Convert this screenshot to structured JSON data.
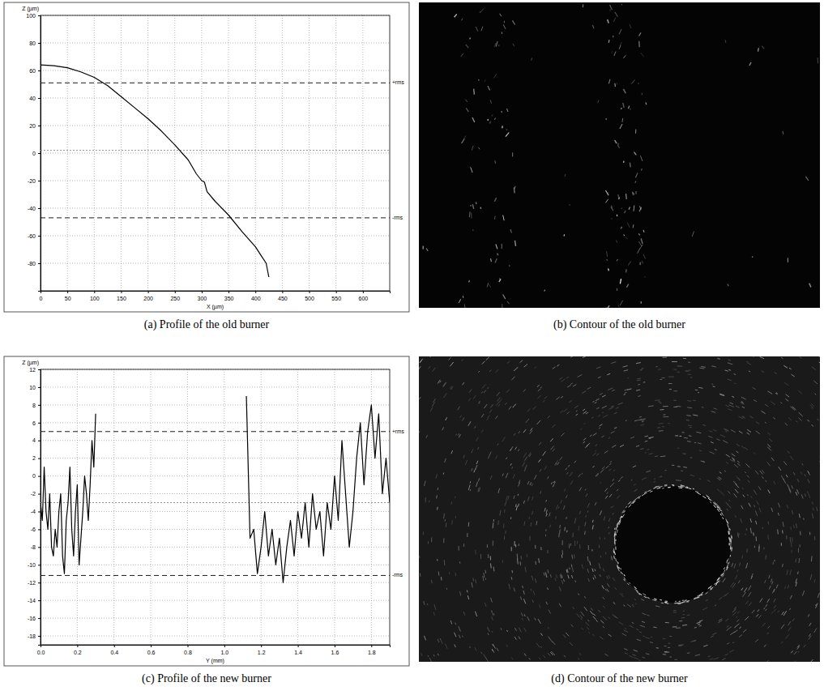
{
  "chart_data": [
    {
      "type": "line",
      "caption": "(a) Profile of the old burner",
      "x_label": "X (µm)",
      "y_label": "Z (µm)",
      "x": [
        0,
        25,
        50,
        75,
        100,
        125,
        150,
        175,
        200,
        225,
        250,
        275,
        290,
        300,
        305,
        310,
        325,
        350,
        375,
        400,
        410,
        420,
        425
      ],
      "series": [
        {
          "color": "#000000",
          "values": [
            64,
            63.5,
            62,
            59,
            55,
            49,
            41,
            33,
            25,
            16,
            6,
            -5,
            -15,
            -20,
            -21,
            -28,
            -35,
            -45,
            -57,
            -68,
            -74,
            -80,
            -90
          ]
        }
      ],
      "xlim": [
        0,
        650
      ],
      "xticks": [
        0,
        50,
        100,
        150,
        200,
        250,
        300,
        350,
        400,
        450,
        500,
        550,
        600
      ],
      "ylim": [
        -100,
        100
      ],
      "yticks": [
        100,
        80,
        60,
        40,
        20,
        0,
        -20,
        -40,
        -60,
        -80
      ],
      "grid": true,
      "annotations": [
        {
          "y": 51,
          "text": "+rms",
          "line_style": "dashed"
        },
        {
          "y": 2,
          "line_style": "dotted"
        },
        {
          "y": -47,
          "text": "-rms",
          "line_style": "dashed"
        }
      ]
    },
    {
      "type": "line",
      "caption": "(c) Profile of the new burner",
      "x_label": "Y (mm)",
      "y_label": "Z (µm)",
      "x": [
        0.0,
        0.01,
        0.02,
        0.03,
        0.04,
        0.05,
        0.06,
        0.07,
        0.08,
        0.09,
        0.1,
        0.11,
        0.12,
        0.13,
        0.14,
        0.15,
        0.16,
        0.17,
        0.18,
        0.19,
        0.2,
        0.21,
        0.22,
        0.23,
        0.24,
        0.25,
        0.26,
        0.27,
        0.28,
        0.29,
        0.3,
        0.7,
        1.12,
        1.14,
        1.16,
        1.18,
        1.2,
        1.22,
        1.24,
        1.26,
        1.28,
        1.3,
        1.32,
        1.34,
        1.36,
        1.38,
        1.4,
        1.42,
        1.44,
        1.46,
        1.48,
        1.5,
        1.52,
        1.54,
        1.56,
        1.58,
        1.6,
        1.62,
        1.64,
        1.66,
        1.68,
        1.7,
        1.72,
        1.74,
        1.76,
        1.78,
        1.8,
        1.82,
        1.84,
        1.86,
        1.88,
        1.9
      ],
      "series": [
        {
          "color": "#000000",
          "values": [
            -3,
            -5,
            1,
            -4,
            -6,
            -2,
            -8,
            -9,
            -6,
            -8,
            -4,
            -2,
            -9,
            -11,
            -5,
            -3,
            1,
            -6,
            -9,
            -4,
            -1,
            -10,
            -7,
            -4,
            0,
            -2,
            -5,
            -1,
            4,
            1,
            7,
            null,
            9,
            -7,
            -6,
            -11,
            -8,
            -4,
            -9,
            -6,
            -10,
            -7,
            -12,
            -8,
            -5,
            -9,
            -4,
            -7,
            -3,
            -8,
            -2,
            -6,
            -4,
            -9,
            -3,
            -6,
            0,
            -5,
            4,
            -2,
            -8,
            -4,
            2,
            6,
            -1,
            5,
            8,
            2,
            7,
            -2,
            2,
            -3
          ]
        }
      ],
      "xlim": [
        0,
        1.9
      ],
      "xticks": [
        {
          "value": 0,
          "label": "0.0"
        },
        0.2,
        0.4,
        0.6,
        0.8,
        {
          "value": 1,
          "label": "1.0"
        },
        1.2,
        1.4,
        1.6,
        1.8
      ],
      "ylim": [
        -19,
        12
      ],
      "yticks": [
        12,
        10,
        8,
        6,
        4,
        2,
        0,
        -2,
        -4,
        -6,
        -8,
        -10,
        -12,
        -14,
        -16,
        -18
      ],
      "grid": true,
      "annotations": [
        {
          "y": 5,
          "text": "+rms",
          "line_style": "dashed"
        },
        {
          "y": -3,
          "line_style": "dotted"
        },
        {
          "y": -11.2,
          "text": "-rms",
          "line_style": "dashed"
        }
      ]
    }
  ],
  "images": [
    {
      "caption": "(b) Contour of the old burner"
    },
    {
      "caption": "(d) Contour of the new burner"
    }
  ]
}
